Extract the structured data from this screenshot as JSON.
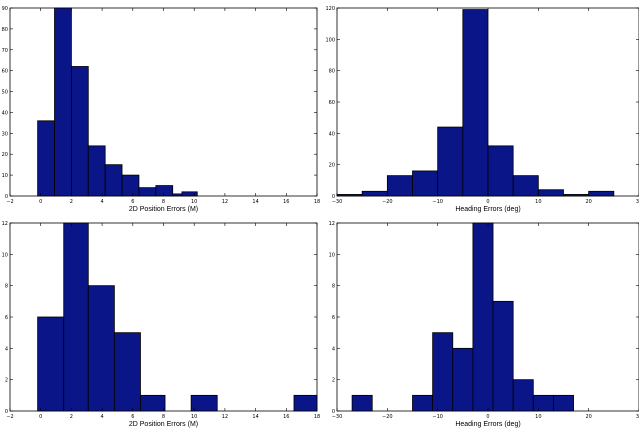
{
  "colors": {
    "bar_fill": "#0a1587",
    "bar_edge": "#000000",
    "axes": "#000000",
    "background": "#ffffff"
  },
  "chart_data": [
    {
      "type": "bar",
      "subtype": "histogram",
      "xlabel": "2D Position Errors (M)",
      "xlim": [
        -2,
        18
      ],
      "ylim": [
        0,
        90
      ],
      "xticks": [
        -2,
        0,
        2,
        4,
        6,
        8,
        10,
        12,
        14,
        16,
        18
      ],
      "yticks": [
        0,
        10,
        20,
        30,
        40,
        50,
        60,
        70,
        80,
        90
      ],
      "x_tick_labels": [
        "−2",
        "0",
        "2",
        "4",
        "6",
        "8",
        "10",
        "12",
        "14",
        "16",
        "18"
      ],
      "y_tick_labels": [
        "0",
        "10",
        "20",
        "30",
        "40",
        "50",
        "60",
        "70",
        "80",
        "90"
      ],
      "bin_edges": [
        -0.2,
        0.9,
        2.0,
        3.1,
        4.2,
        5.3,
        6.4,
        7.5,
        8.6,
        9.7,
        10.8
      ],
      "values": [
        36,
        90,
        62,
        24,
        15,
        10,
        4,
        5,
        1,
        0
      ],
      "bars_extra": [
        {
          "x0": 9.2,
          "x1": 10.2,
          "value": 2
        }
      ],
      "grid": false
    },
    {
      "type": "bar",
      "subtype": "histogram",
      "xlabel": "Heading Errors (deg)",
      "xlim": [
        -30,
        30
      ],
      "ylim": [
        0,
        120
      ],
      "xticks": [
        -30,
        -20,
        -10,
        0,
        10,
        20,
        30
      ],
      "yticks": [
        0,
        20,
        40,
        60,
        80,
        100,
        120
      ],
      "x_tick_labels": [
        "−30",
        "−20",
        "−10",
        "0",
        "10",
        "20",
        "30"
      ],
      "y_tick_labels": [
        "0",
        "20",
        "40",
        "60",
        "80",
        "100",
        "120"
      ],
      "bin_edges": [
        -30,
        -25,
        -20,
        -15,
        -10,
        -5,
        0,
        5,
        10,
        15,
        20,
        25,
        30
      ],
      "values": [
        1,
        3,
        13,
        16,
        44,
        119,
        32,
        13,
        4,
        1,
        3,
        0
      ],
      "grid": false
    },
    {
      "type": "bar",
      "subtype": "histogram",
      "xlabel": "2D Position Errors (M)",
      "xlim": [
        -2,
        18
      ],
      "ylim": [
        0,
        12
      ],
      "xticks": [
        -2,
        0,
        2,
        4,
        6,
        8,
        10,
        12,
        14,
        16,
        18
      ],
      "yticks": [
        0,
        2,
        4,
        6,
        8,
        10,
        12
      ],
      "x_tick_labels": [
        "−2",
        "0",
        "2",
        "4",
        "6",
        "8",
        "10",
        "12",
        "14",
        "16",
        "18"
      ],
      "y_tick_labels": [
        "0",
        "2",
        "4",
        "6",
        "8",
        "10",
        "12"
      ],
      "bin_edges": [
        -0.2,
        1.5,
        3.1,
        4.8,
        6.5,
        8.1,
        9.8,
        11.5,
        13.1,
        14.8,
        16.5,
        18
      ],
      "values": [
        6,
        12,
        8,
        5,
        1,
        0,
        1,
        0,
        0,
        0,
        1
      ],
      "grid": false
    },
    {
      "type": "bar",
      "subtype": "histogram",
      "xlabel": "Heading Errors (deg)",
      "xlim": [
        -30,
        30
      ],
      "ylim": [
        0,
        12
      ],
      "xticks": [
        -30,
        -20,
        -10,
        0,
        10,
        20,
        30
      ],
      "yticks": [
        0,
        2,
        4,
        6,
        8,
        10,
        12
      ],
      "x_tick_labels": [
        "−30",
        "−20",
        "−10",
        "0",
        "10",
        "20",
        "30"
      ],
      "y_tick_labels": [
        "0",
        "2",
        "4",
        "6",
        "8",
        "10",
        "12"
      ],
      "bin_edges": [
        -27,
        -23,
        -19,
        -15,
        -11,
        -7,
        -3,
        1,
        5,
        9,
        13,
        17,
        21
      ],
      "values": [
        1,
        0,
        0,
        1,
        5,
        4,
        12,
        7,
        2,
        1,
        1,
        0
      ],
      "grid": false
    }
  ]
}
